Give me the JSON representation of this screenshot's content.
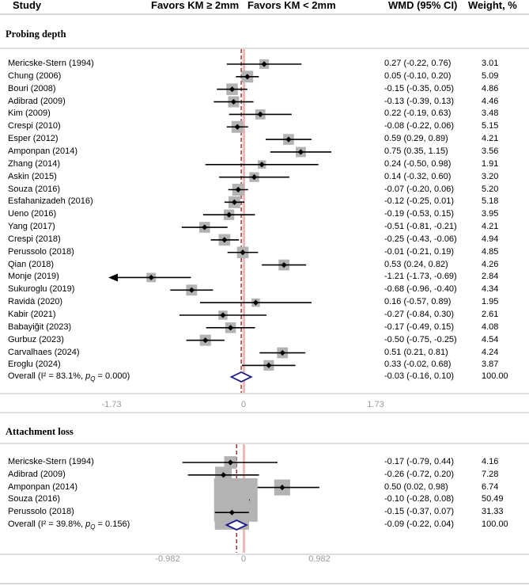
{
  "header": {
    "study": "Study",
    "favors_left": "Favors KM ≥ 2mm",
    "favors_right": "Favors KM < 2mm",
    "wmd": "WMD (95% CI)",
    "weight": "Weight, %"
  },
  "colors": {
    "marker_box": "#b3b3b3",
    "null_line": "#f2b8b8",
    "overall_line": "#8b1a1a",
    "diamond": "#1c1c8c",
    "axis_text": "#9a9a9a"
  },
  "chart_data": [
    {
      "type": "forest",
      "section_title": "Probing depth",
      "x_ticks": [
        "-1.73",
        "0",
        "1.73"
      ],
      "xlim": [
        -1.73,
        1.73
      ],
      "studies": [
        {
          "label": "Mericske-Stern (1994)",
          "est": 0.27,
          "lo": -0.22,
          "hi": 0.76,
          "wmd": "0.27 (-0.22, 0.76)",
          "weight": "3.01"
        },
        {
          "label": "Chung (2006)",
          "est": 0.05,
          "lo": -0.1,
          "hi": 0.2,
          "wmd": "0.05 (-0.10, 0.20)",
          "weight": "5.09"
        },
        {
          "label": "Bouri (2008)",
          "est": -0.15,
          "lo": -0.35,
          "hi": 0.05,
          "wmd": "-0.15 (-0.35, 0.05)",
          "weight": "4.86"
        },
        {
          "label": "Adibrad (2009)",
          "est": -0.13,
          "lo": -0.39,
          "hi": 0.13,
          "wmd": "-0.13 (-0.39, 0.13)",
          "weight": "4.46"
        },
        {
          "label": "Kim (2009)",
          "est": 0.22,
          "lo": -0.19,
          "hi": 0.63,
          "wmd": "0.22 (-0.19, 0.63)",
          "weight": "3.48"
        },
        {
          "label": "Crespi (2010)",
          "est": -0.08,
          "lo": -0.22,
          "hi": 0.06,
          "wmd": "-0.08 (-0.22, 0.06)",
          "weight": "5.15"
        },
        {
          "label": "Esper (2012)",
          "est": 0.59,
          "lo": 0.29,
          "hi": 0.89,
          "wmd": "0.59 (0.29, 0.89)",
          "weight": "4.21"
        },
        {
          "label": "Amponpan (2014)",
          "est": 0.75,
          "lo": 0.35,
          "hi": 1.15,
          "wmd": "0.75 (0.35, 1.15)",
          "weight": "3.56"
        },
        {
          "label": "Zhang (2014)",
          "est": 0.24,
          "lo": -0.5,
          "hi": 0.98,
          "wmd": "0.24 (-0.50, 0.98)",
          "weight": "1.91"
        },
        {
          "label": "Askin (2015)",
          "est": 0.14,
          "lo": -0.32,
          "hi": 0.6,
          "wmd": "0.14 (-0.32, 0.60)",
          "weight": "3.20"
        },
        {
          "label": "Souza (2016)",
          "est": -0.07,
          "lo": -0.2,
          "hi": 0.06,
          "wmd": "-0.07 (-0.20, 0.06)",
          "weight": "5.20"
        },
        {
          "label": "Esfahanizadeh (2016)",
          "est": -0.12,
          "lo": -0.25,
          "hi": 0.01,
          "wmd": "-0.12 (-0.25, 0.01)",
          "weight": "5.18"
        },
        {
          "label": "Ueno (2016)",
          "est": -0.19,
          "lo": -0.53,
          "hi": 0.15,
          "wmd": "-0.19 (-0.53, 0.15)",
          "weight": "3.95"
        },
        {
          "label": "Yang (2017)",
          "est": -0.51,
          "lo": -0.81,
          "hi": -0.21,
          "wmd": "-0.51 (-0.81, -0.21)",
          "weight": "4.21"
        },
        {
          "label": "Crespi (2018)",
          "est": -0.25,
          "lo": -0.43,
          "hi": -0.06,
          "wmd": "-0.25 (-0.43, -0.06)",
          "weight": "4.94"
        },
        {
          "label": "Perussolo (2018)",
          "est": -0.01,
          "lo": -0.21,
          "hi": 0.19,
          "wmd": "-0.01 (-0.21, 0.19)",
          "weight": "4.85"
        },
        {
          "label": "Qian (2018)",
          "est": 0.53,
          "lo": 0.24,
          "hi": 0.82,
          "wmd": "0.53 (0.24, 0.82)",
          "weight": "4.26"
        },
        {
          "label": "Monje (2019)",
          "est": -1.21,
          "lo": -1.73,
          "hi": -0.69,
          "wmd": "-1.21 (-1.73, -0.69)",
          "weight": "2.84",
          "arrow_left": true
        },
        {
          "label": "Sukuroglu (2019)",
          "est": -0.68,
          "lo": -0.96,
          "hi": -0.4,
          "wmd": "-0.68 (-0.96, -0.40)",
          "weight": "4.34"
        },
        {
          "label": "Ravidà (2020)",
          "est": 0.16,
          "lo": -0.57,
          "hi": 0.89,
          "wmd": "0.16 (-0.57, 0.89)",
          "weight": "1.95"
        },
        {
          "label": "Kabir (2021)",
          "est": -0.27,
          "lo": -0.84,
          "hi": 0.3,
          "wmd": "-0.27 (-0.84, 0.30)",
          "weight": "2.61"
        },
        {
          "label": "Babayiğit (2023)",
          "est": -0.17,
          "lo": -0.49,
          "hi": 0.15,
          "wmd": "-0.17 (-0.49, 0.15)",
          "weight": "4.08"
        },
        {
          "label": "Gurbuz (2023)",
          "est": -0.5,
          "lo": -0.75,
          "hi": -0.25,
          "wmd": "-0.50 (-0.75, -0.25)",
          "weight": "4.54"
        },
        {
          "label": "Carvalhaes (2024)",
          "est": 0.51,
          "lo": 0.21,
          "hi": 0.81,
          "wmd": "0.51 (0.21, 0.81)",
          "weight": "4.24"
        },
        {
          "label": "Eroglu (2024)",
          "est": 0.33,
          "lo": -0.02,
          "hi": 0.68,
          "wmd": "0.33 (-0.02, 0.68)",
          "weight": "3.87"
        }
      ],
      "overall": {
        "label": "Overall",
        "stats_label": "(I² = 83.1%, p",
        "stats_q": "Q",
        "stats_tail": " = 0.000)",
        "est": -0.03,
        "lo": -0.16,
        "hi": 0.1,
        "wmd": "-0.03 (-0.16, 0.10)",
        "weight": "100.00"
      }
    },
    {
      "type": "forest",
      "section_title": "Attachment loss",
      "x_ticks": [
        "-0.982",
        "0",
        "0.982"
      ],
      "xlim": [
        -0.982,
        0.982
      ],
      "studies": [
        {
          "label": "Mericske-Stern (1994)",
          "est": -0.17,
          "lo": -0.79,
          "hi": 0.44,
          "wmd": "-0.17 (-0.79, 0.44)",
          "weight": "4.16"
        },
        {
          "label": "Adibrad (2009)",
          "est": -0.26,
          "lo": -0.72,
          "hi": 0.2,
          "wmd": "-0.26 (-0.72, 0.20)",
          "weight": "7.28"
        },
        {
          "label": "Amponpan (2014)",
          "est": 0.5,
          "lo": 0.02,
          "hi": 0.98,
          "wmd": "0.50 (0.02, 0.98)",
          "weight": "6.74"
        },
        {
          "label": "Souza (2016)",
          "est": -0.1,
          "lo": -0.28,
          "hi": 0.08,
          "wmd": "-0.10 (-0.28, 0.08)",
          "weight": "50.49"
        },
        {
          "label": "Perussolo (2018)",
          "est": -0.15,
          "lo": -0.37,
          "hi": 0.07,
          "wmd": "-0.15 (-0.37, 0.07)",
          "weight": "31.33"
        }
      ],
      "overall": {
        "label": "Overall",
        "stats_label": "(I² = 39.8%, p",
        "stats_q": "Q",
        "stats_tail": " = 0.156)",
        "est": -0.09,
        "lo": -0.22,
        "hi": 0.04,
        "wmd": "-0.09 (-0.22, 0.04)",
        "weight": "100.00"
      }
    }
  ]
}
